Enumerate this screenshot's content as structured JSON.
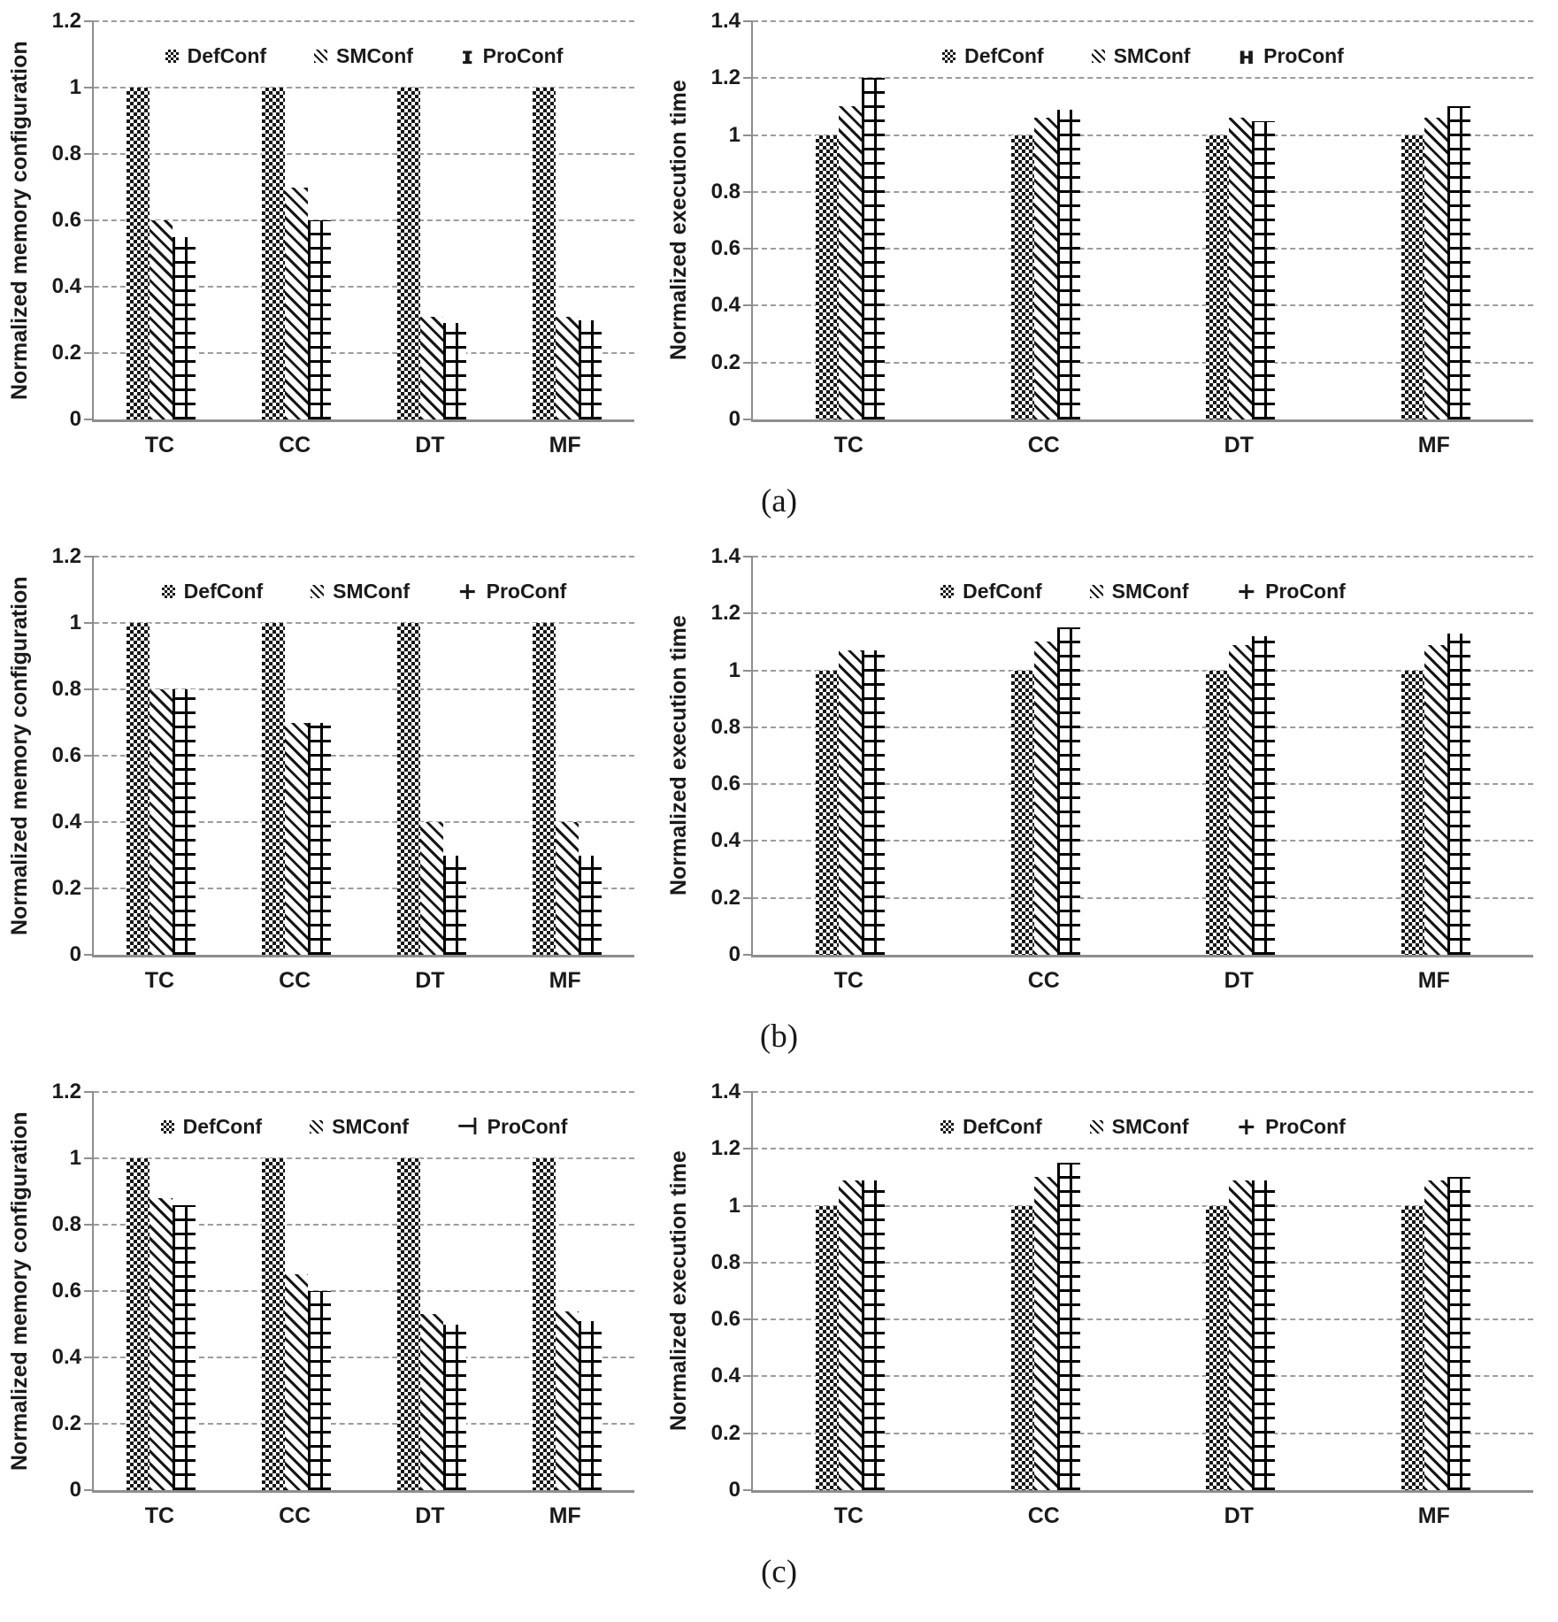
{
  "figure": {
    "panel_labels": [
      "(a)",
      "(b)",
      "(c)"
    ],
    "series_names": [
      "DefConf",
      "SMConf",
      "ProConf"
    ],
    "categories": [
      "TC",
      "CC",
      "DT",
      "MF"
    ],
    "colors": {
      "ink": "#1a1a1a",
      "grid": "#9c9c9c",
      "axis": "#8e8e8e",
      "bar_fill": "#ffffff",
      "bar_ink": "#161616"
    }
  },
  "chart_data": [
    {
      "id": "a-left",
      "panel": "a",
      "position": "left",
      "type": "bar",
      "ylabel": "Normalized memory configuration",
      "ylim": [
        0,
        1.2
      ],
      "grid": "dashed-horizontal",
      "legend_position": "top-center",
      "yticks": [
        0,
        0.2,
        0.4,
        0.6,
        0.8,
        1,
        1.2
      ],
      "ytick_labels": [
        "0",
        "0.2",
        "0.4",
        "0.6",
        "0.8",
        "1",
        "1.2"
      ],
      "categories": [
        "TC",
        "CC",
        "DT",
        "MF"
      ],
      "legend": {
        "defconf_marker": "checker-swatch",
        "smconf_marker": "diagonal-swatch",
        "proconf_marker_glyph": "ɪ"
      },
      "series": [
        {
          "name": "DefConf",
          "pattern": "checker",
          "values": [
            1.0,
            1.0,
            1.0,
            1.0
          ]
        },
        {
          "name": "SMConf",
          "pattern": "diagonal",
          "values": [
            0.6,
            0.7,
            0.31,
            0.31
          ]
        },
        {
          "name": "ProConf",
          "pattern": "grid",
          "values": [
            0.55,
            0.6,
            0.29,
            0.3
          ]
        }
      ]
    },
    {
      "id": "a-right",
      "panel": "a",
      "position": "right",
      "type": "bar",
      "ylabel": "Normalized execution time",
      "ylim": [
        0,
        1.4
      ],
      "grid": "dashed-horizontal",
      "legend_position": "top-center",
      "yticks": [
        0,
        0.2,
        0.4,
        0.6,
        0.8,
        1,
        1.2,
        1.4
      ],
      "ytick_labels": [
        "0",
        "0.2",
        "0.4",
        "0.6",
        "0.8",
        "1",
        "1.2",
        "1.4"
      ],
      "categories": [
        "TC",
        "CC",
        "DT",
        "MF"
      ],
      "legend": {
        "defconf_marker": "checker-swatch",
        "smconf_marker": "diagonal-swatch",
        "proconf_marker_glyph": "ʜ"
      },
      "series": [
        {
          "name": "DefConf",
          "pattern": "checker",
          "values": [
            1.0,
            1.0,
            1.0,
            1.0
          ]
        },
        {
          "name": "SMConf",
          "pattern": "diagonal",
          "values": [
            1.1,
            1.06,
            1.06,
            1.06
          ]
        },
        {
          "name": "ProConf",
          "pattern": "grid",
          "values": [
            1.2,
            1.09,
            1.05,
            1.1
          ]
        }
      ]
    },
    {
      "id": "b-left",
      "panel": "b",
      "position": "left",
      "type": "bar",
      "ylabel": "Normalized memory configuration",
      "ylim": [
        0,
        1.2
      ],
      "grid": "dashed-horizontal",
      "legend_position": "top-center",
      "yticks": [
        0,
        0.2,
        0.4,
        0.6,
        0.8,
        1,
        1.2
      ],
      "ytick_labels": [
        "0",
        "0.2",
        "0.4",
        "0.6",
        "0.8",
        "1",
        "1.2"
      ],
      "categories": [
        "TC",
        "CC",
        "DT",
        "MF"
      ],
      "legend": {
        "defconf_marker": "checker-swatch",
        "smconf_marker": "diagonal-swatch",
        "proconf_marker_glyph": "+"
      },
      "series": [
        {
          "name": "DefConf",
          "pattern": "checker",
          "values": [
            1.0,
            1.0,
            1.0,
            1.0
          ]
        },
        {
          "name": "SMConf",
          "pattern": "diagonal",
          "values": [
            0.8,
            0.7,
            0.4,
            0.4
          ]
        },
        {
          "name": "ProConf",
          "pattern": "grid",
          "values": [
            0.8,
            0.7,
            0.3,
            0.3
          ]
        }
      ]
    },
    {
      "id": "b-right",
      "panel": "b",
      "position": "right",
      "type": "bar",
      "ylabel": "Normalized execution time",
      "ylim": [
        0,
        1.4
      ],
      "grid": "dashed-horizontal",
      "legend_position": "top-center",
      "yticks": [
        0,
        0.2,
        0.4,
        0.6,
        0.8,
        1,
        1.2,
        1.4
      ],
      "ytick_labels": [
        "0",
        "0.2",
        "0.4",
        "0.6",
        "0.8",
        "1",
        "1.2",
        "1.4"
      ],
      "categories": [
        "TC",
        "CC",
        "DT",
        "MF"
      ],
      "legend": {
        "defconf_marker": "checker-swatch",
        "smconf_marker": "diagonal-swatch",
        "proconf_marker_glyph": "+"
      },
      "series": [
        {
          "name": "DefConf",
          "pattern": "checker",
          "values": [
            1.0,
            1.0,
            1.0,
            1.0
          ]
        },
        {
          "name": "SMConf",
          "pattern": "diagonal",
          "values": [
            1.07,
            1.1,
            1.09,
            1.09
          ]
        },
        {
          "name": "ProConf",
          "pattern": "grid",
          "values": [
            1.07,
            1.15,
            1.12,
            1.13
          ]
        }
      ]
    },
    {
      "id": "c-left",
      "panel": "c",
      "position": "left",
      "type": "bar",
      "ylabel": "Normalized memory configuration",
      "ylim": [
        0,
        1.2
      ],
      "grid": "dashed-horizontal",
      "legend_position": "top-center",
      "yticks": [
        0,
        0.2,
        0.4,
        0.6,
        0.8,
        1,
        1.2
      ],
      "ytick_labels": [
        "0",
        "0.2",
        "0.4",
        "0.6",
        "0.8",
        "1",
        "1.2"
      ],
      "categories": [
        "TC",
        "CC",
        "DT",
        "MF"
      ],
      "legend": {
        "defconf_marker": "checker-swatch",
        "smconf_marker": "diagonal-swatch",
        "proconf_marker_glyph": "⊣"
      },
      "series": [
        {
          "name": "DefConf",
          "pattern": "checker",
          "values": [
            1.0,
            1.0,
            1.0,
            1.0
          ]
        },
        {
          "name": "SMConf",
          "pattern": "diagonal",
          "values": [
            0.88,
            0.65,
            0.53,
            0.54
          ]
        },
        {
          "name": "ProConf",
          "pattern": "grid",
          "values": [
            0.86,
            0.6,
            0.5,
            0.51
          ]
        }
      ]
    },
    {
      "id": "c-right",
      "panel": "c",
      "position": "right",
      "type": "bar",
      "ylabel": "Normalized execution time",
      "ylim": [
        0,
        1.4
      ],
      "grid": "dashed-horizontal",
      "legend_position": "top-center",
      "yticks": [
        0,
        0.2,
        0.4,
        0.6,
        0.8,
        1,
        1.2,
        1.4
      ],
      "ytick_labels": [
        "0",
        "0.2",
        "0.4",
        "0.6",
        "0.8",
        "1",
        "1.2",
        "1.4"
      ],
      "categories": [
        "TC",
        "CC",
        "DT",
        "MF"
      ],
      "legend": {
        "defconf_marker": "checker-swatch",
        "smconf_marker": "diagonal-swatch",
        "proconf_marker_glyph": "+"
      },
      "series": [
        {
          "name": "DefConf",
          "pattern": "checker",
          "values": [
            1.0,
            1.0,
            1.0,
            1.0
          ]
        },
        {
          "name": "SMConf",
          "pattern": "diagonal",
          "values": [
            1.09,
            1.1,
            1.09,
            1.09
          ]
        },
        {
          "name": "ProConf",
          "pattern": "grid",
          "values": [
            1.09,
            1.15,
            1.09,
            1.1
          ]
        }
      ]
    }
  ]
}
